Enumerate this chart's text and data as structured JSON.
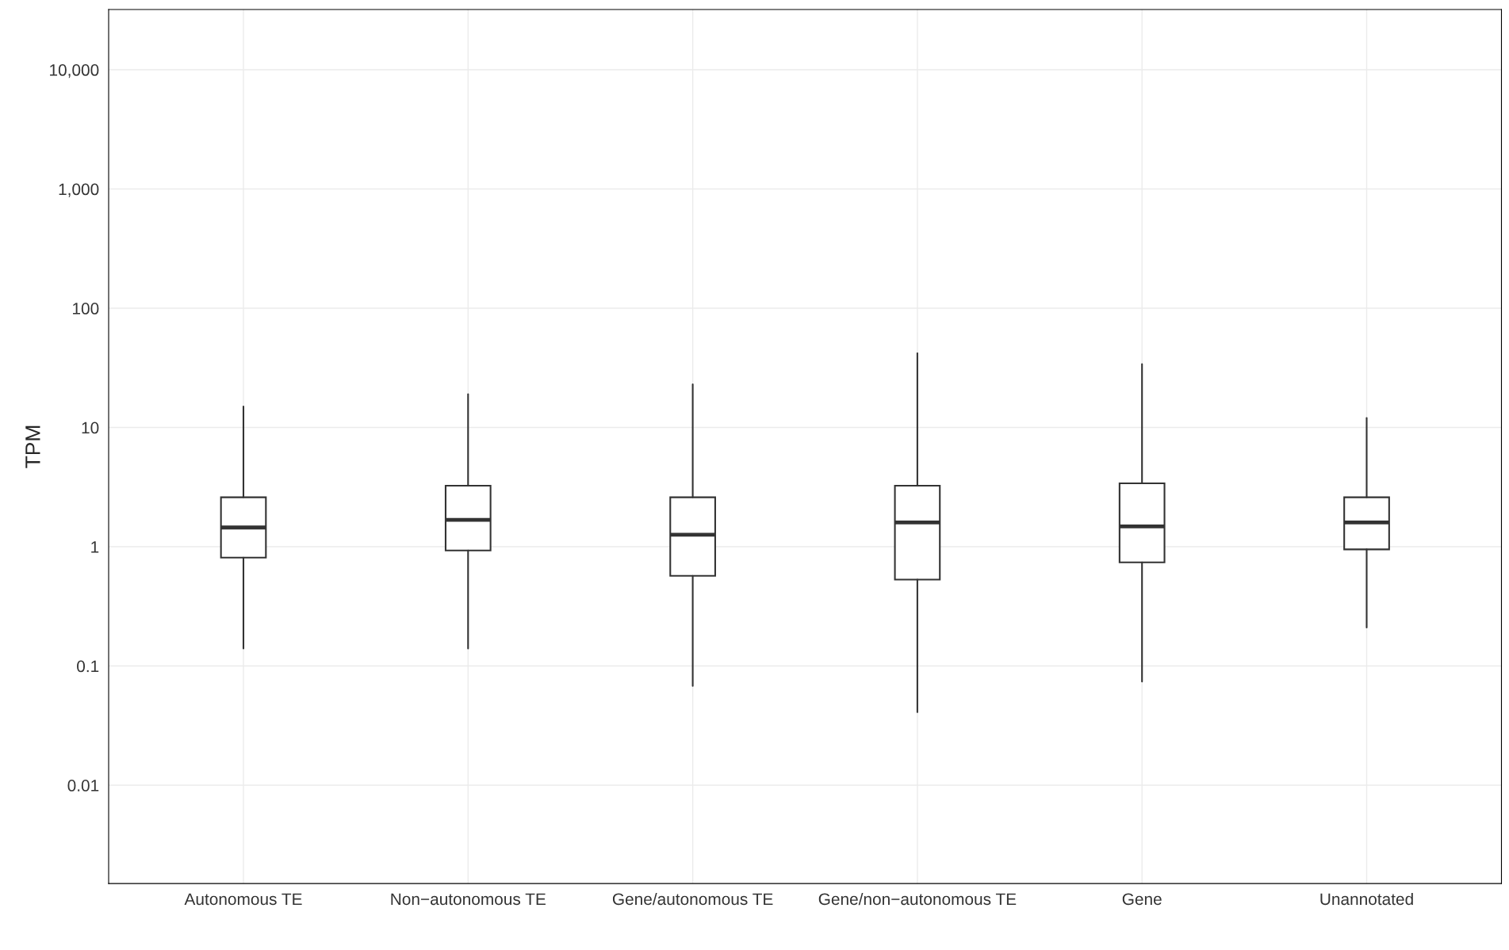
{
  "chart_data": {
    "type": "box",
    "ylabel": "TPM",
    "categories": [
      "Autonomous TE",
      "Non−autonomous TE",
      "Gene/autonomous TE",
      "Gene/non−autonomous TE",
      "Gene",
      "Unannotated"
    ],
    "boxes": [
      {
        "low": 0.14,
        "q1": 0.81,
        "median": 1.45,
        "q3": 2.6,
        "high": 15
      },
      {
        "low": 0.14,
        "q1": 0.93,
        "median": 1.68,
        "q3": 3.25,
        "high": 19
      },
      {
        "low": 0.068,
        "q1": 0.57,
        "median": 1.26,
        "q3": 2.6,
        "high": 23
      },
      {
        "low": 0.041,
        "q1": 0.53,
        "median": 1.6,
        "q3": 3.25,
        "high": 42
      },
      {
        "low": 0.074,
        "q1": 0.74,
        "median": 1.48,
        "q3": 3.4,
        "high": 34
      },
      {
        "low": 0.21,
        "q1": 0.95,
        "median": 1.6,
        "q3": 2.6,
        "high": 12
      }
    ],
    "log": "y",
    "ylim": [
      0.0015,
      32000
    ],
    "yticks": [
      0.01,
      0.1,
      1,
      10,
      100,
      {
        "value": 1000,
        "label": "1,000"
      },
      {
        "value": 10000,
        "label": "10,000"
      }
    ],
    "grid": true
  }
}
